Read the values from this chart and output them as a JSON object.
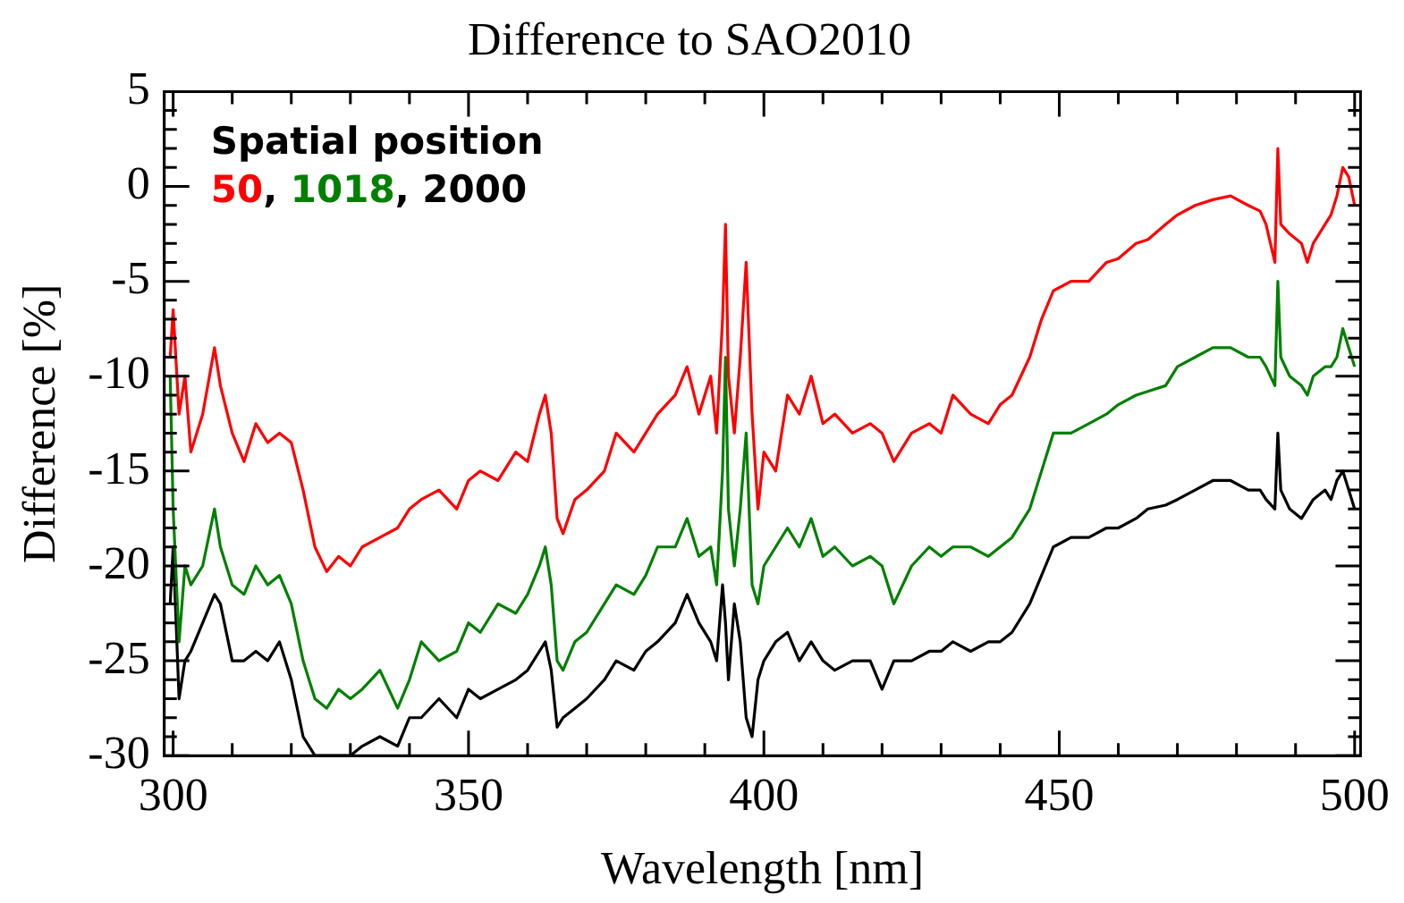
{
  "chart_data": {
    "type": "line",
    "title": "Difference to SAO2010",
    "xlabel": "Wavelength [nm]",
    "ylabel": "Difference [%]",
    "legend_title": "Spatial position",
    "legend": "top left",
    "annotations": [
      ",",
      ","
    ],
    "grid": false,
    "marker": "none",
    "line_style": "solid",
    "x": [
      299.5,
      300,
      301,
      302,
      303,
      305,
      307,
      308,
      310,
      312,
      314,
      316,
      318,
      320,
      322,
      324,
      326,
      328,
      330,
      332,
      335,
      338,
      340,
      342,
      345,
      348,
      350,
      352,
      355,
      358,
      360,
      362,
      363,
      364,
      365,
      366,
      368,
      370,
      373,
      375,
      378,
      380,
      382,
      385,
      387,
      389,
      391,
      392,
      393,
      393.5,
      394,
      395,
      396,
      397,
      398,
      399,
      400,
      402,
      404,
      406,
      408,
      410,
      412,
      415,
      418,
      420,
      422,
      425,
      428,
      430,
      432,
      435,
      438,
      440,
      442,
      445,
      447,
      449,
      452,
      455,
      458,
      460,
      463,
      465,
      468,
      470,
      473,
      476,
      479,
      482,
      484,
      485,
      486.5,
      487,
      487.5,
      489,
      491,
      492,
      493,
      495,
      496,
      497,
      498,
      499,
      500
    ],
    "xlim": [
      298.5,
      501
    ],
    "xticks": [
      300,
      350,
      400,
      450,
      500
    ],
    "ylim": [
      -30,
      5
    ],
    "yticks": [
      -30,
      -25,
      -20,
      -15,
      -10,
      -5,
      0,
      5
    ],
    "series": [
      {
        "name": "50",
        "color": "#ff0000",
        "values": [
          -9,
          -6.5,
          -12,
          -10,
          -14,
          -12,
          -8.5,
          -10.5,
          -13,
          -14.5,
          -12.5,
          -13.5,
          -13,
          -13.5,
          -16,
          -19,
          -20.3,
          -19.5,
          -20,
          -19,
          -18.5,
          -18,
          -17,
          -16.5,
          -16,
          -17,
          -15.5,
          -15,
          -15.5,
          -14,
          -14.5,
          -12,
          -11,
          -13,
          -17.5,
          -18.3,
          -16.5,
          -16,
          -15,
          -13,
          -14,
          -13,
          -12,
          -11,
          -9.5,
          -12,
          -10,
          -13,
          -7,
          -2,
          -10,
          -13,
          -9,
          -4,
          -12,
          -17,
          -14,
          -15,
          -11,
          -12,
          -10,
          -12.5,
          -12,
          -13,
          -12.5,
          -13,
          -14.5,
          -13,
          -12.5,
          -13,
          -11,
          -12,
          -12.5,
          -11.5,
          -11,
          -9,
          -7,
          -5.5,
          -5,
          -5,
          -4,
          -3.8,
          -3,
          -2.8,
          -2,
          -1.5,
          -1,
          -0.7,
          -0.5,
          -1,
          -1.3,
          -2,
          -4,
          2,
          -2,
          -2.5,
          -3,
          -4,
          -3,
          -2,
          -1.5,
          -0.5,
          1,
          0.5,
          -1
        ]
      },
      {
        "name": "1018",
        "color": "#008000",
        "values": [
          -10,
          -17,
          -24,
          -20,
          -21,
          -20,
          -17,
          -19,
          -21,
          -21.5,
          -20,
          -21,
          -20.5,
          -22,
          -25,
          -27,
          -27.5,
          -26.5,
          -27,
          -26.5,
          -25.5,
          -27.5,
          -26,
          -24,
          -25,
          -24.5,
          -23,
          -23.5,
          -22,
          -22.5,
          -21.5,
          -20,
          -19,
          -21,
          -25,
          -25.5,
          -24,
          -23.5,
          -22,
          -21,
          -21.5,
          -20.5,
          -19,
          -19,
          -17.5,
          -19.5,
          -19,
          -21,
          -15,
          -9,
          -17,
          -20,
          -17,
          -13,
          -21,
          -22,
          -20,
          -19,
          -18,
          -19,
          -17.5,
          -19.5,
          -19,
          -20,
          -19.5,
          -20,
          -22,
          -20,
          -19,
          -19.5,
          -19,
          -19,
          -19.5,
          -19,
          -18.5,
          -17,
          -15,
          -13,
          -13,
          -12.5,
          -12,
          -11.5,
          -11,
          -10.8,
          -10.5,
          -9.5,
          -9,
          -8.5,
          -8.5,
          -9,
          -9,
          -9.5,
          -10.5,
          -5,
          -9,
          -10,
          -10.5,
          -11,
          -10,
          -9.5,
          -9.5,
          -9,
          -7.5,
          -8.5,
          -9.5
        ]
      },
      {
        "name": "2000",
        "color": "#000000",
        "values": [
          -22,
          -19,
          -27,
          -25,
          -24.5,
          -23,
          -21.5,
          -22,
          -25,
          -25,
          -24.5,
          -25,
          -24,
          -26,
          -29,
          -30,
          -30,
          -30,
          -30,
          -29.5,
          -29,
          -29.5,
          -28,
          -28,
          -27,
          -28,
          -26.5,
          -27,
          -26.5,
          -26,
          -25.5,
          -24.5,
          -24,
          -25.5,
          -28.5,
          -28,
          -27.5,
          -27,
          -26,
          -25,
          -25.5,
          -24.5,
          -24,
          -23,
          -21.5,
          -23,
          -24,
          -25,
          -21,
          -23,
          -26,
          -22,
          -24,
          -28,
          -29,
          -26,
          -25,
          -24,
          -23.5,
          -25,
          -24,
          -25,
          -25.5,
          -25,
          -25,
          -26.5,
          -25,
          -25,
          -24.5,
          -24.5,
          -24,
          -24.5,
          -24,
          -24,
          -23.5,
          -22,
          -20.5,
          -19,
          -18.5,
          -18.5,
          -18,
          -18,
          -17.5,
          -17,
          -16.8,
          -16.5,
          -16,
          -15.5,
          -15.5,
          -16,
          -16,
          -16.5,
          -17,
          -13,
          -16,
          -17,
          -17.5,
          -17,
          -16.5,
          -16,
          -16.5,
          -15.5,
          -15,
          -16,
          -17
        ]
      }
    ]
  }
}
